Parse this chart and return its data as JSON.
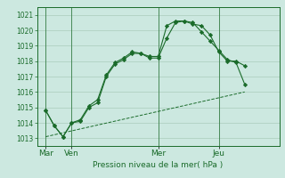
{
  "bg_color": "#cce8e0",
  "grid_color": "#aaccbb",
  "line_color": "#1a6b2a",
  "title": "Pression niveau de la mer( hPa )",
  "ylim": [
    1012.5,
    1021.5
  ],
  "yticks": [
    1013,
    1014,
    1015,
    1016,
    1017,
    1018,
    1019,
    1020,
    1021
  ],
  "xlim": [
    0,
    28
  ],
  "day_ticks": [
    1,
    4,
    14,
    21
  ],
  "day_labels": [
    "Mar",
    "Ven",
    "Mer",
    "Jeu"
  ],
  "vlines": [
    1,
    4,
    14,
    21
  ],
  "series1": {
    "x": [
      1,
      2,
      3,
      4,
      5,
      6,
      7,
      8,
      9,
      10,
      11,
      12,
      13,
      14,
      15,
      16,
      17,
      18,
      19,
      20,
      21,
      22,
      23,
      24
    ],
    "y": [
      1014.8,
      1013.8,
      1013.1,
      1014.0,
      1014.1,
      1015.0,
      1015.3,
      1017.0,
      1017.8,
      1018.1,
      1018.5,
      1018.5,
      1018.2,
      1018.2,
      1019.5,
      1020.5,
      1020.6,
      1020.4,
      1020.3,
      1019.7,
      1018.6,
      1018.0,
      1018.0,
      1017.7
    ]
  },
  "series2": {
    "x": [
      1,
      2,
      3,
      4,
      5,
      6,
      7,
      8,
      9,
      10,
      11,
      12,
      13,
      14,
      15,
      16,
      17,
      18,
      19,
      20,
      21,
      22,
      23,
      24
    ],
    "y": [
      1014.8,
      1013.8,
      1013.1,
      1014.0,
      1014.2,
      1015.1,
      1015.5,
      1017.1,
      1017.9,
      1018.2,
      1018.6,
      1018.5,
      1018.3,
      1018.3,
      1020.3,
      1020.6,
      1020.6,
      1020.5,
      1019.9,
      1019.3,
      1018.7,
      1018.1,
      1017.9,
      1016.5
    ]
  },
  "series3": {
    "x": [
      1,
      24
    ],
    "y": [
      1013.1,
      1016.0
    ]
  }
}
